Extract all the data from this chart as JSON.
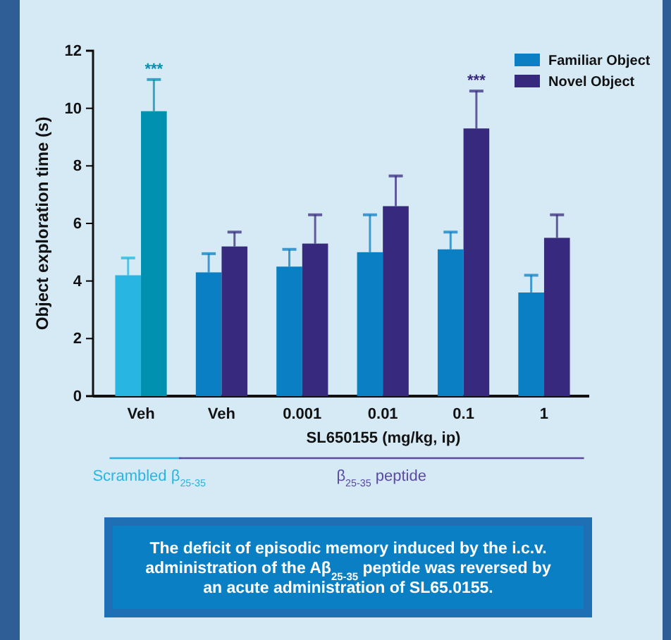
{
  "chart_data": {
    "type": "bar",
    "ylabel": "Object exploration time (s)",
    "xlabel": "SL650155 (mg/kg, ip)",
    "categories": [
      "Veh",
      "Veh",
      "0.001",
      "0.01",
      "0.1",
      "1"
    ],
    "series": [
      {
        "name": "Familiar Object",
        "color": "#0a7fc4",
        "colors": [
          "#29b5e2",
          "#0a7fc4",
          "#0a7fc4",
          "#0a7fc4",
          "#0a7fc4",
          "#0a7fc4"
        ],
        "values": [
          4.2,
          4.3,
          4.5,
          5.0,
          5.1,
          3.6
        ],
        "errors": [
          [
            4.2,
            4.8
          ],
          [
            4.3,
            4.95
          ],
          [
            4.5,
            5.1
          ],
          [
            5.0,
            6.3
          ],
          [
            5.1,
            5.7
          ],
          [
            3.6,
            4.2
          ]
        ]
      },
      {
        "name": "Novel Object",
        "color": "#372a7e",
        "colors": [
          "#0090b0",
          "#372a7e",
          "#372a7e",
          "#372a7e",
          "#372a7e",
          "#372a7e"
        ],
        "values": [
          9.9,
          5.2,
          5.3,
          6.6,
          9.3,
          5.5
        ],
        "errors": [
          [
            9.9,
            11.0
          ],
          [
            5.2,
            5.7
          ],
          [
            5.3,
            6.3
          ],
          [
            6.6,
            7.65
          ],
          [
            9.3,
            10.6
          ],
          [
            5.5,
            6.3
          ]
        ]
      }
    ],
    "ylim": [
      0,
      12
    ],
    "yticks": [
      0,
      2,
      4,
      6,
      8,
      10,
      12
    ],
    "grid": false,
    "legend": "top right",
    "annotations": [
      {
        "text": "***",
        "x": "Veh",
        "y": 11.0
      },
      {
        "text": "***",
        "x": "0.1",
        "y": 10.6
      },
      "Scrambled β$_{25-35}$",
      "β$_{25-35}$ peptide",
      "The deficit of episodic memory induced by the i.c.v. administration of the Aβ$_{25-35}$ peptide was reversed by an acute administration of SL65.0155."
    ]
  }
}
